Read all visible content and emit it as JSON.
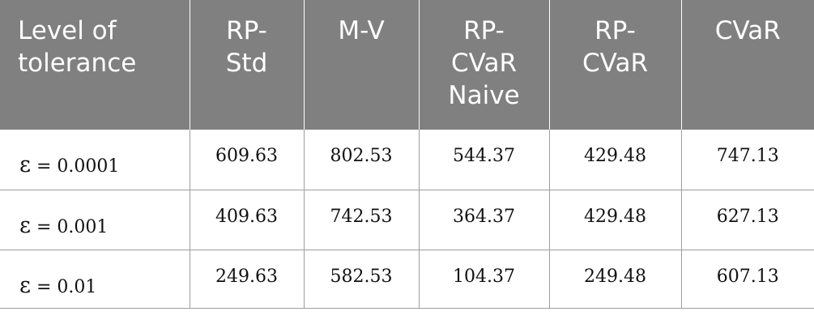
{
  "table": {
    "headers": [
      [
        "Level of",
        "tolerance"
      ],
      [
        "RP-",
        "Std"
      ],
      [
        "M-V"
      ],
      [
        "RP-",
        "CVaR",
        "Naive"
      ],
      [
        "RP-",
        "CVaR"
      ],
      [
        "CVaR"
      ]
    ],
    "rows": [
      {
        "symbol": "ε",
        "level": " = 0.0001",
        "values": [
          "609.63",
          "802.53",
          "544.37",
          "429.48",
          "747.13"
        ]
      },
      {
        "symbol": "ε",
        "level": " = 0.001",
        "values": [
          "409.63",
          "742.53",
          "364.37",
          "429.48",
          "627.13"
        ]
      },
      {
        "symbol": "ε",
        "level": " = 0.01",
        "values": [
          "249.63",
          "582.53",
          "104.37",
          "249.48",
          "607.13"
        ]
      }
    ]
  },
  "colors": {
    "header_background": "#808080",
    "header_text": "#ffffff",
    "grid_lines": "#9e9e9e"
  }
}
